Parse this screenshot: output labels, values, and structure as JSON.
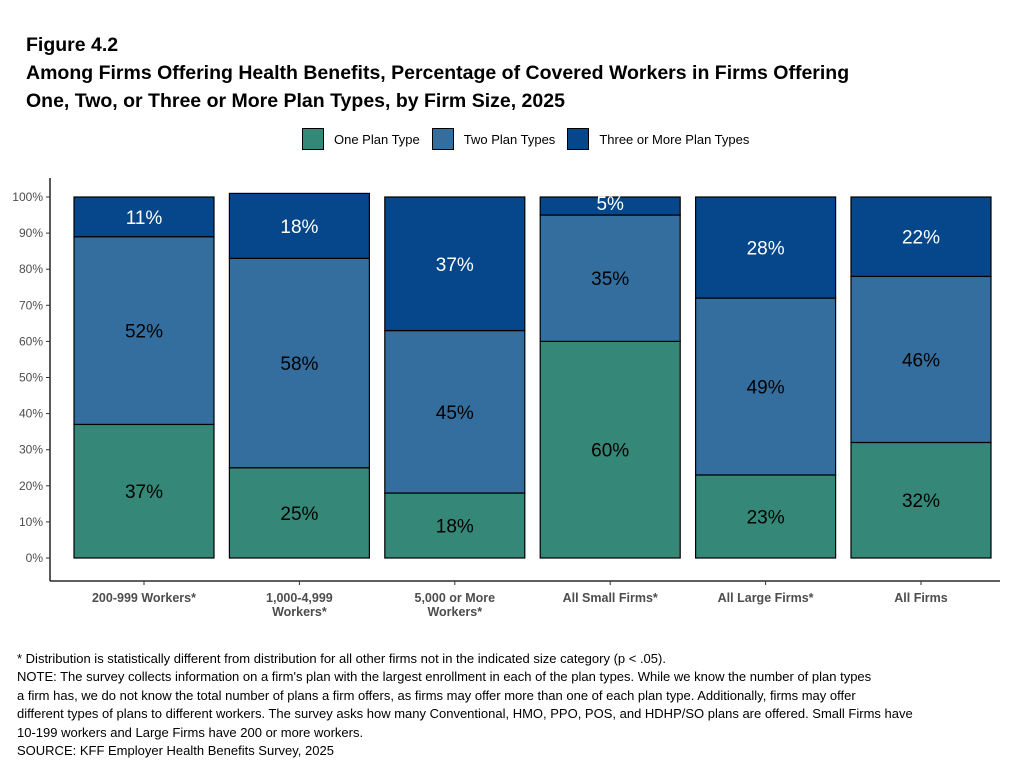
{
  "figure_label": "Figure 4.2",
  "title_line1": "Among Firms Offering Health Benefits, Percentage of Covered Workers in Firms Offering",
  "title_line2": "One, Two, or Three or More Plan Types, by Firm Size, 2025",
  "chart_data": {
    "type": "bar",
    "stacked": true,
    "title": "Among Firms Offering Health Benefits, Percentage of Covered Workers in Firms Offering One, Two, or Three or More Plan Types, by Firm Size, 2025",
    "categories": [
      "200-999 Workers*",
      "1,000-4,999 Workers*",
      "5,000 or More Workers*",
      "All Small Firms*",
      "All Large Firms*",
      "All Firms"
    ],
    "series": [
      {
        "name": "One Plan Type",
        "color": "#358877",
        "values": [
          37,
          25,
          18,
          60,
          23,
          32
        ]
      },
      {
        "name": "Two Plan Types",
        "color": "#336e9e",
        "values": [
          52,
          58,
          45,
          35,
          49,
          46
        ]
      },
      {
        "name": "Three or More Plan Types",
        "color": "#05478a",
        "values": [
          11,
          18,
          37,
          5,
          28,
          22
        ]
      }
    ],
    "yticks": [
      "0%",
      "10%",
      "20%",
      "30%",
      "40%",
      "50%",
      "60%",
      "70%",
      "80%",
      "90%",
      "100%"
    ],
    "ylim": [
      0,
      100
    ],
    "xlabel": "",
    "ylabel": "",
    "legend": "top-center",
    "grid": false
  },
  "notes": [
    "* Distribution is statistically different from distribution for all other firms not in the indicated size category (p < .05).",
    "NOTE: The survey collects information on a firm's plan with the largest enrollment in each of the plan types. While we know the number of plan types",
    "a firm has, we do not know the total number of plans a firm offers, as firms may offer more than one of each plan type. Additionally, firms may offer",
    "different types of plans to different workers. The survey asks how many Conventional, HMO, PPO, POS, and HDHP/SO plans are offered. Small Firms have",
    "10-199 workers and Large Firms have 200 or more workers.",
    "SOURCE: KFF Employer Health Benefits Survey, 2025"
  ]
}
